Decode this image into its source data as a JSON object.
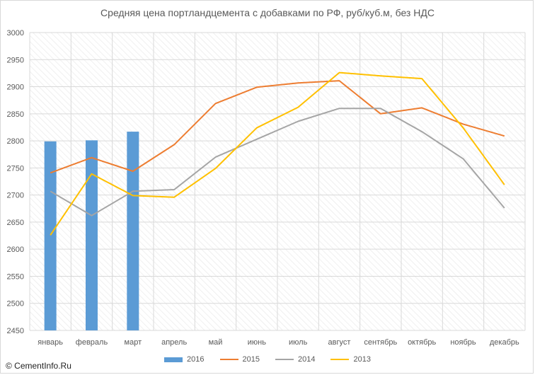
{
  "chart_data": {
    "type": "bar+line",
    "title": "Средняя цена портландцемента с добавками по РФ, руб/куб.м, без НДС",
    "categories": [
      "январь",
      "февраль",
      "март",
      "апрель",
      "май",
      "июнь",
      "июль",
      "август",
      "сентябрь",
      "октябрь",
      "ноябрь",
      "декабрь"
    ],
    "ylim": [
      2450,
      3000
    ],
    "yticks": [
      2450,
      2500,
      2550,
      2600,
      2650,
      2700,
      2750,
      2800,
      2850,
      2900,
      2950,
      3000
    ],
    "grid": true,
    "legend_position": "bottom",
    "series": [
      {
        "name": "2016",
        "kind": "bar",
        "color": "#5b9bd5",
        "values": [
          2799,
          2801,
          2817,
          null,
          null,
          null,
          null,
          null,
          null,
          null,
          null,
          null
        ]
      },
      {
        "name": "2015",
        "kind": "line",
        "color": "#ed7d31",
        "values": [
          2741,
          2769,
          2744,
          2793,
          2869,
          2899,
          2907,
          2911,
          2850,
          2861,
          2831,
          2809
        ]
      },
      {
        "name": "2014",
        "kind": "line",
        "color": "#a5a5a5",
        "values": [
          2707,
          2662,
          2707,
          2710,
          2770,
          2803,
          2836,
          2860,
          2860,
          2817,
          2767,
          2676
        ]
      },
      {
        "name": "2013",
        "kind": "line",
        "color": "#ffc000",
        "values": [
          2626,
          2739,
          2699,
          2696,
          2749,
          2824,
          2862,
          2926,
          2920,
          2915,
          2824,
          2719
        ]
      }
    ]
  },
  "watermark": "© CementInfo.Ru"
}
